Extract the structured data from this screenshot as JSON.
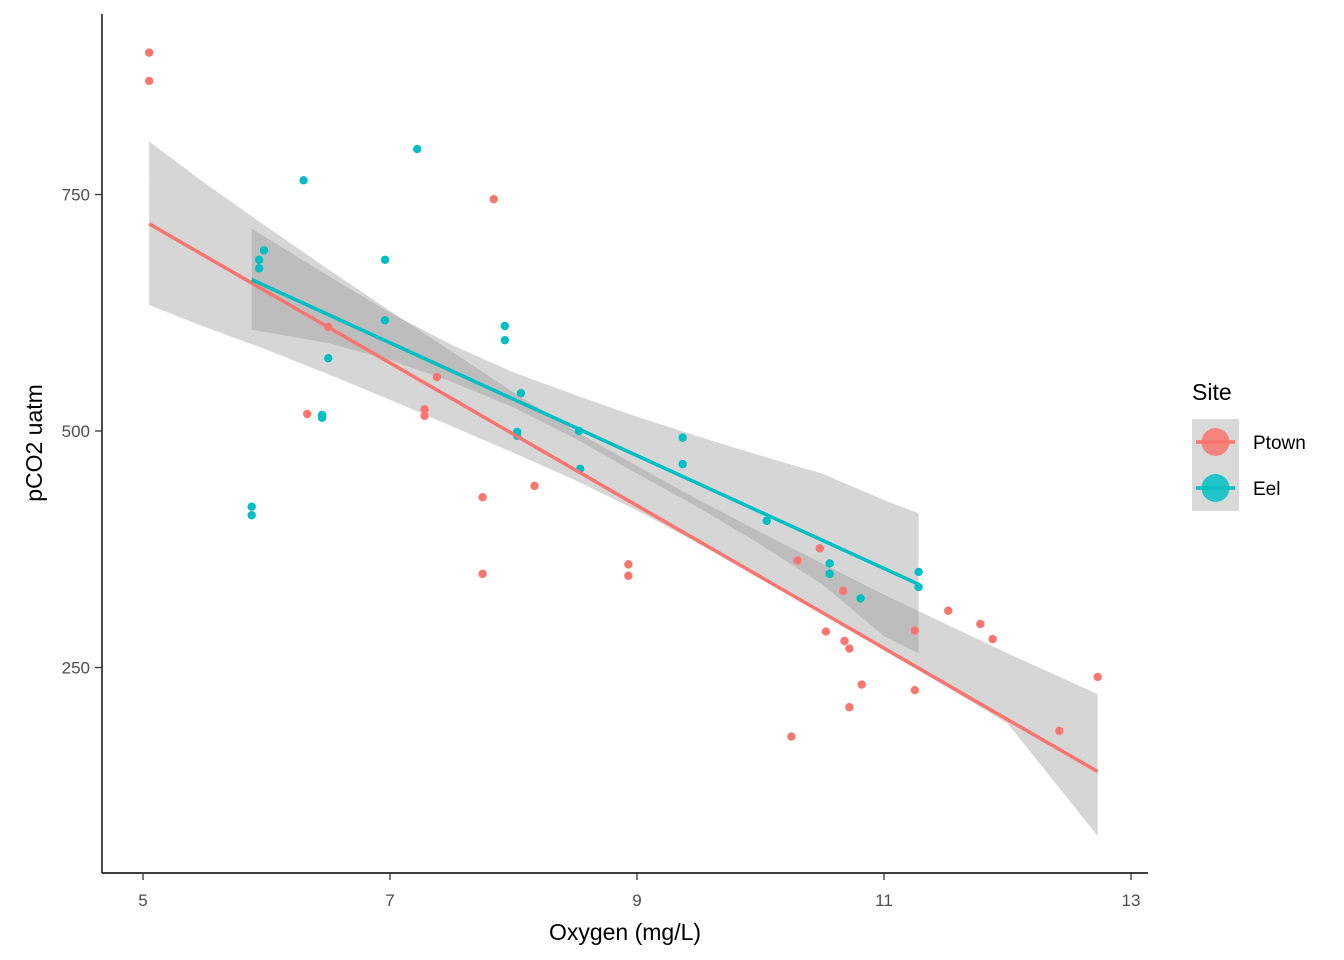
{
  "chart_data": {
    "type": "scatter",
    "xlabel": "Oxygen (mg/L)",
    "ylabel": "pCO2 uatm",
    "xlim": [
      5.0,
      13.0
    ],
    "ylim": [
      75,
      915
    ],
    "xticks": [
      5,
      7,
      9,
      11,
      13
    ],
    "yticks": [
      250,
      500,
      750
    ],
    "xtick_labels": [
      "5",
      "7",
      "9",
      "11",
      "13"
    ],
    "ytick_labels": [
      "250",
      "500",
      "750"
    ],
    "grid": false,
    "legend": {
      "title": "Site",
      "position": "right"
    },
    "series": [
      {
        "name": "Ptown",
        "color": "#F8766D",
        "points": [
          [
            5.05,
            900
          ],
          [
            5.05,
            870
          ],
          [
            6.33,
            518
          ],
          [
            6.5,
            610
          ],
          [
            7.28,
            523
          ],
          [
            7.28,
            516
          ],
          [
            7.38,
            557
          ],
          [
            7.75,
            430
          ],
          [
            7.75,
            349
          ],
          [
            7.84,
            745
          ],
          [
            8.17,
            442
          ],
          [
            8.93,
            359
          ],
          [
            8.93,
            347
          ],
          [
            10.25,
            177
          ],
          [
            10.3,
            363
          ],
          [
            10.48,
            376
          ],
          [
            10.53,
            288
          ],
          [
            10.67,
            331
          ],
          [
            10.68,
            278
          ],
          [
            10.72,
            208
          ],
          [
            10.72,
            270
          ],
          [
            10.82,
            232
          ],
          [
            11.25,
            289
          ],
          [
            11.25,
            226
          ],
          [
            11.52,
            310
          ],
          [
            11.78,
            296
          ],
          [
            11.88,
            280
          ],
          [
            12.42,
            183
          ],
          [
            12.73,
            240
          ]
        ],
        "fit": {
          "x": [
            5.05,
            12.73
          ],
          "y": [
            719,
            140
          ]
        },
        "ci": {
          "x": [
            5.05,
            5.5,
            6.0,
            6.5,
            7.0,
            7.5,
            8.0,
            8.5,
            9.0,
            9.5,
            10.0,
            10.5,
            11.0,
            11.5,
            12.0,
            12.73
          ],
          "upper": [
            806,
            762,
            716,
            671,
            627,
            584,
            541,
            500,
            463,
            427,
            393,
            360,
            327,
            296,
            265,
            222
          ],
          "lower": [
            633,
            610,
            586,
            560,
            533,
            505,
            477,
            448,
            416,
            381,
            345,
            307,
            268,
            230,
            191,
            72
          ]
        }
      },
      {
        "name": "Eel",
        "color": "#00BFC4",
        "points": [
          [
            5.88,
            420
          ],
          [
            5.88,
            411
          ],
          [
            5.94,
            672
          ],
          [
            5.94,
            681
          ],
          [
            5.98,
            691
          ],
          [
            6.3,
            765
          ],
          [
            6.45,
            517
          ],
          [
            6.45,
            514
          ],
          [
            6.5,
            577
          ],
          [
            6.96,
            681
          ],
          [
            6.96,
            617
          ],
          [
            7.22,
            798
          ],
          [
            7.93,
            611
          ],
          [
            7.93,
            596
          ],
          [
            8.03,
            499
          ],
          [
            8.03,
            495
          ],
          [
            8.06,
            540
          ],
          [
            8.53,
            500
          ],
          [
            8.54,
            460
          ],
          [
            9.37,
            493
          ],
          [
            9.37,
            465
          ],
          [
            10.05,
            405
          ],
          [
            10.56,
            360
          ],
          [
            10.56,
            349
          ],
          [
            10.81,
            323
          ],
          [
            11.28,
            351
          ],
          [
            11.28,
            335
          ]
        ],
        "fit": {
          "x": [
            5.88,
            11.28
          ],
          "y": [
            660,
            338
          ]
        },
        "ci": {
          "x": [
            5.88,
            6.5,
            7.0,
            7.5,
            8.0,
            8.5,
            9.0,
            9.5,
            10.0,
            10.5,
            11.0,
            11.28
          ],
          "upper": [
            714,
            664,
            625,
            591,
            562,
            538,
            515,
            494,
            474,
            455,
            427,
            413
          ],
          "lower": [
            607,
            593,
            575,
            552,
            525,
            492,
            455,
            419,
            380,
            338,
            283,
            265
          ]
        }
      }
    ]
  }
}
